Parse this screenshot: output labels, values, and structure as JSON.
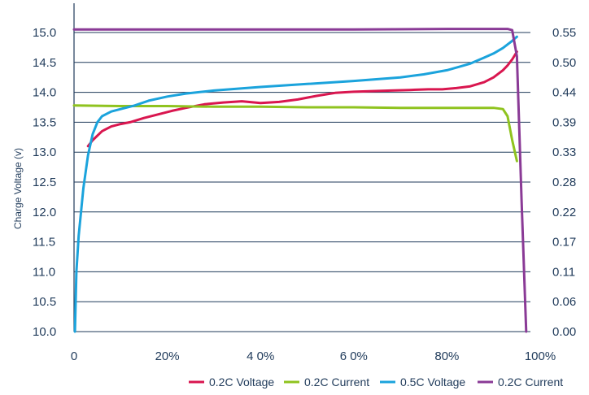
{
  "chart_data": {
    "type": "line",
    "ylabel": "Charge Voltage (v)",
    "x_ticks": [
      "0",
      "20%",
      "4 0%",
      "6 0%",
      "80%",
      "100%"
    ],
    "x_tick_values": [
      0,
      20,
      40,
      60,
      80,
      100
    ],
    "xlim": [
      0,
      100
    ],
    "y_left_ticks": [
      "10.0",
      "10.5",
      "11.0",
      "11.5",
      "12.0",
      "12.5",
      "13.0",
      "13.5",
      "14.0",
      "14.5",
      "15.0"
    ],
    "ylim_left": [
      10.0,
      15.0
    ],
    "y_right_ticks": [
      "0.00",
      "0.06",
      "0.11",
      "0.17",
      "0.22",
      "0.28",
      "0.33",
      "0.39",
      "0.44",
      "0.50",
      "0.55"
    ],
    "ylim_right": [
      0.0,
      0.55
    ],
    "grid": "horizontal",
    "legend_position": "bottom",
    "series": [
      {
        "name": "0.2C Voltage",
        "color": "#d9164f",
        "axis": "left",
        "x": [
          3,
          4,
          6,
          8,
          10,
          12,
          15,
          18,
          21,
          24,
          28,
          32,
          36,
          40,
          44,
          48,
          52,
          56,
          60,
          64,
          68,
          72,
          76,
          79,
          82,
          85,
          88,
          90,
          92,
          93,
          94,
          95
        ],
        "y": [
          13.1,
          13.2,
          13.35,
          13.43,
          13.47,
          13.5,
          13.57,
          13.63,
          13.69,
          13.74,
          13.8,
          13.83,
          13.85,
          13.82,
          13.84,
          13.88,
          13.94,
          13.99,
          14.01,
          14.02,
          14.03,
          14.04,
          14.05,
          14.05,
          14.07,
          14.1,
          14.17,
          14.25,
          14.37,
          14.45,
          14.55,
          14.68
        ]
      },
      {
        "name": "0.2C Current",
        "color": "#8fc31f",
        "axis": "left",
        "x": [
          0,
          10,
          20,
          30,
          40,
          50,
          60,
          70,
          80,
          90,
          92,
          93,
          94,
          95
        ],
        "y": [
          13.78,
          13.77,
          13.77,
          13.76,
          13.76,
          13.75,
          13.75,
          13.74,
          13.74,
          13.74,
          13.72,
          13.6,
          13.2,
          12.85
        ]
      },
      {
        "name": "0.5C Voltage",
        "color": "#1ba3dc",
        "axis": "left",
        "x": [
          0.2,
          0.5,
          1,
          2,
          3,
          4,
          5,
          6,
          8,
          10,
          13,
          16,
          20,
          24,
          30,
          40,
          50,
          60,
          70,
          75,
          80,
          85,
          88,
          90,
          92,
          93,
          94,
          95
        ],
        "y": [
          10.0,
          11.0,
          11.6,
          12.4,
          12.95,
          13.3,
          13.5,
          13.6,
          13.68,
          13.72,
          13.78,
          13.86,
          13.93,
          13.98,
          14.03,
          14.09,
          14.14,
          14.19,
          14.25,
          14.3,
          14.37,
          14.48,
          14.58,
          14.65,
          14.74,
          14.8,
          14.86,
          14.93
        ]
      },
      {
        "name": "0.2C Current",
        "color": "#8a3a96",
        "axis": "left",
        "x": [
          0,
          20,
          40,
          60,
          80,
          93,
          94,
          95,
          96,
          97
        ],
        "y": [
          15.05,
          15.05,
          15.05,
          15.05,
          15.06,
          15.06,
          15.04,
          14.6,
          12.2,
          10.0
        ]
      }
    ]
  }
}
